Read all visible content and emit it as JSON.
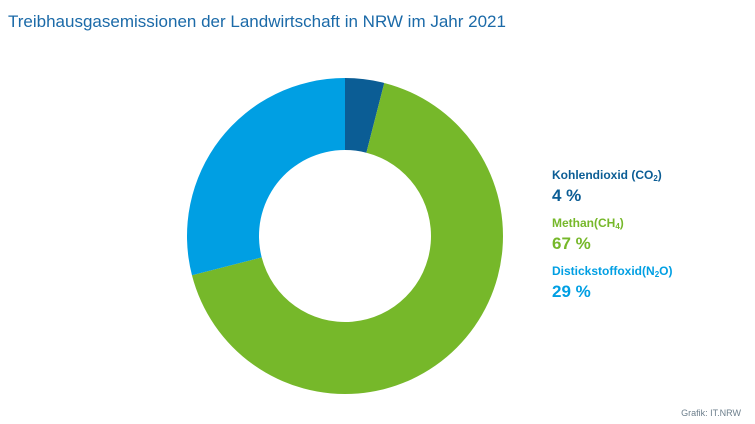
{
  "chart_data": {
    "type": "pie",
    "variant": "donut",
    "title": "Treibhausgasemissionen der Landwirtschaft in NRW im Jahr 2021",
    "unit": "%",
    "slices": [
      {
        "label_main": "Kohlendioxid (CO",
        "label_sub": "2",
        "label_end": ")",
        "value": 4,
        "value_label": "4 %",
        "color": "#0b5d95"
      },
      {
        "label_main": "Methan(CH",
        "label_sub": "4",
        "label_end": ")",
        "value": 67,
        "value_label": "67 %",
        "color": "#76b82a"
      },
      {
        "label_main": "Distickstoffoxid(N",
        "label_sub": "2",
        "label_end": "O)",
        "value": 29,
        "value_label": "29 %",
        "color": "#009fe3"
      }
    ],
    "legend_position": "right",
    "start_angle_deg": 0,
    "direction": "clockwise"
  },
  "credit": "Grafik: IT.NRW"
}
